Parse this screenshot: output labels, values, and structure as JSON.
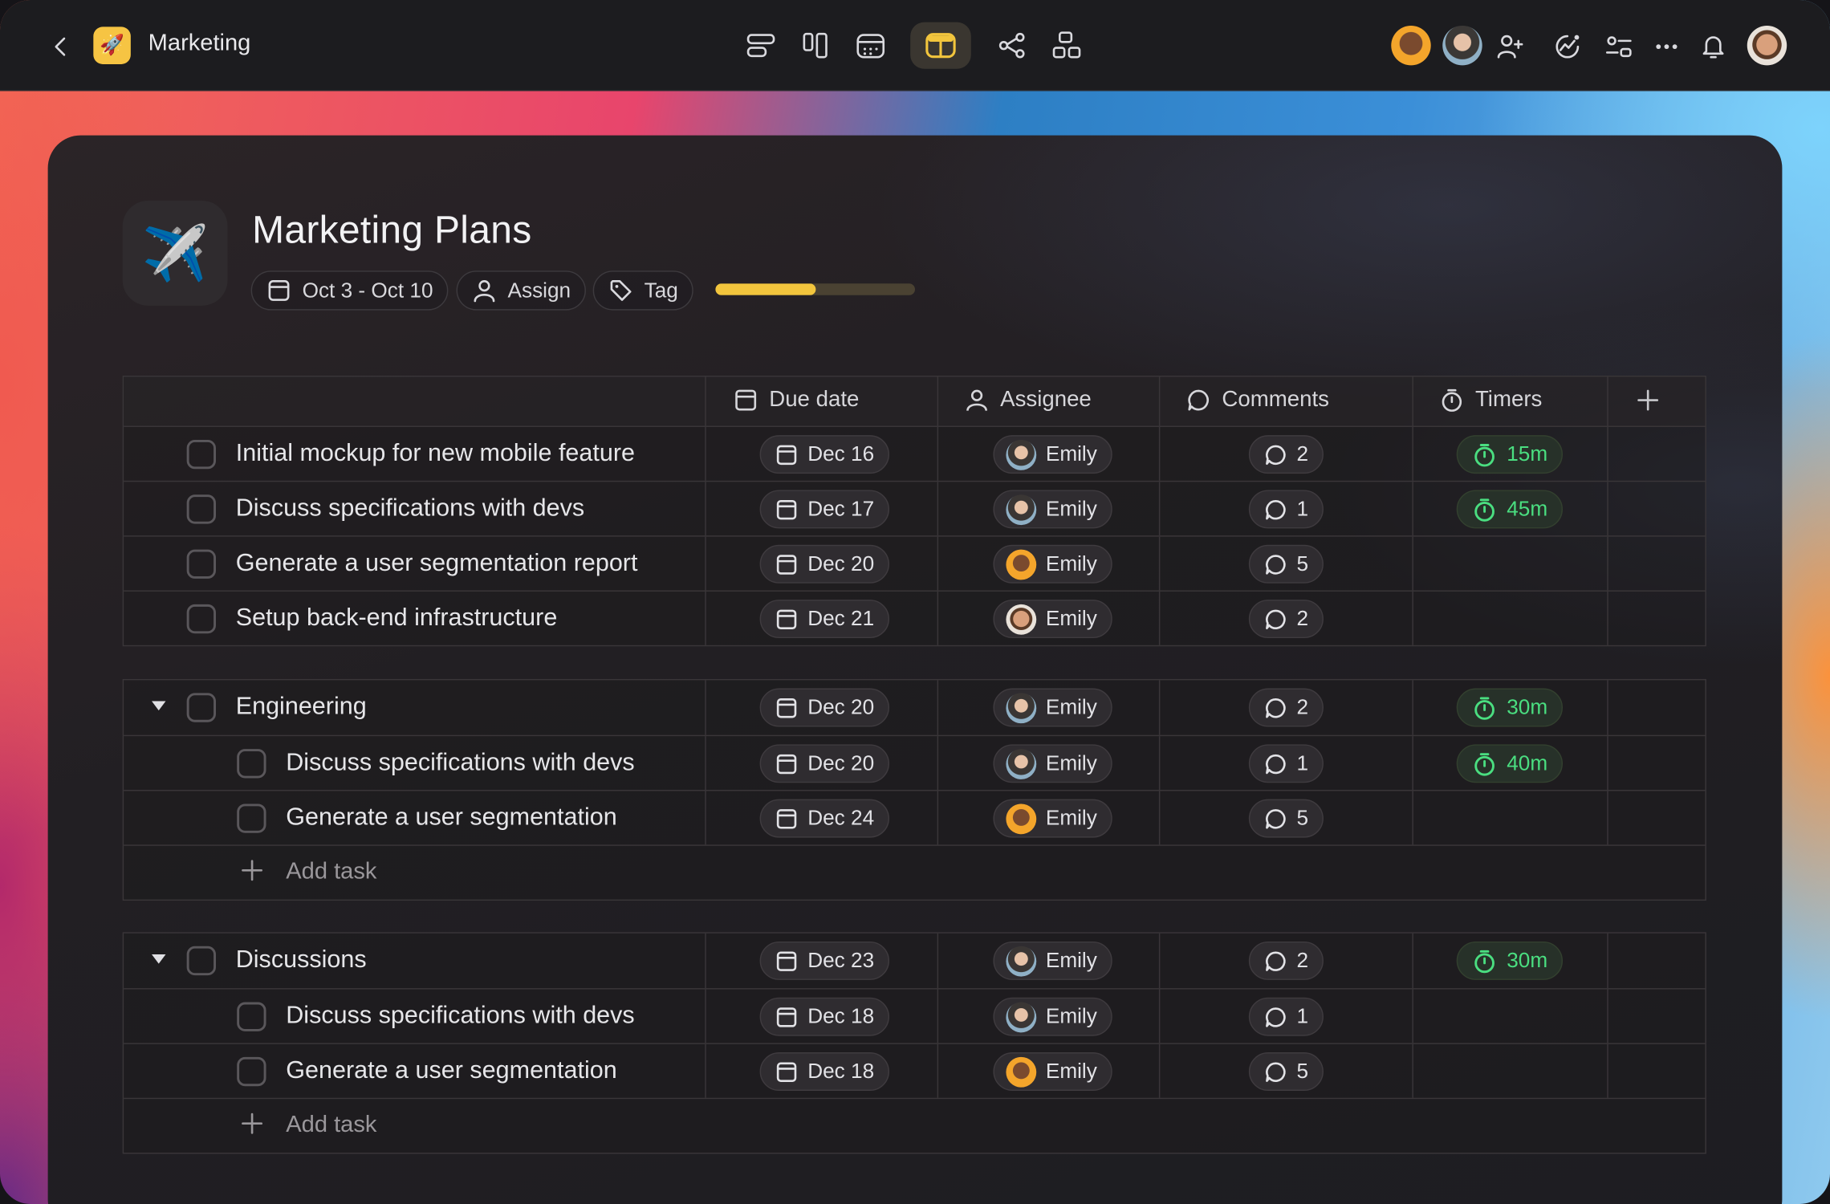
{
  "app": {
    "title": "Marketing",
    "logo_emoji": "🚀"
  },
  "toolbar": {
    "views": [
      "list-view-icon",
      "board-view-icon",
      "calendar-view-icon",
      "table-view-icon",
      "mindmap-view-icon",
      "gantt-view-icon"
    ],
    "active_view": "table-view-icon"
  },
  "project": {
    "icon_emoji": "✈️",
    "title": "Marketing Plans",
    "date_range": "Oct 3 - Oct 10",
    "assign_label": "Assign",
    "tag_label": "Tag",
    "progress_fraction": 0.5
  },
  "columns": {
    "due": "Due date",
    "assignee": "Assignee",
    "comments": "Comments",
    "timers": "Timers"
  },
  "colors": {
    "accent": "#f2c53d",
    "timer": "#4ade80",
    "panel": "#221f23",
    "topbar": "#1c1c1f"
  },
  "groups": [
    {
      "name": null,
      "rows": [
        {
          "title": "Initial mockup for new mobile feature",
          "due": "Dec 16",
          "assignee": "Emily",
          "comments": "2",
          "timer": "15m",
          "avatar": "a"
        },
        {
          "title": "Discuss specifications with devs",
          "due": "Dec 17",
          "assignee": "Emily",
          "comments": "1",
          "timer": "45m",
          "avatar": "a"
        },
        {
          "title": "Generate a user segmentation report",
          "due": "Dec 20",
          "assignee": "Emily",
          "comments": "5",
          "timer": null,
          "avatar": "b"
        },
        {
          "title": "Setup back-end infrastructure",
          "due": "Dec 21",
          "assignee": "Emily",
          "comments": "2",
          "timer": null,
          "avatar": "c"
        }
      ]
    },
    {
      "name": "Engineering",
      "header": {
        "due": "Dec 20",
        "assignee": "Emily",
        "comments": "2",
        "timer": "30m",
        "avatar": "a"
      },
      "rows": [
        {
          "title": "Discuss specifications with devs",
          "due": "Dec 20",
          "assignee": "Emily",
          "comments": "1",
          "timer": "40m",
          "avatar": "a"
        },
        {
          "title": "Generate a user segmentation",
          "due": "Dec 24",
          "assignee": "Emily",
          "comments": "5",
          "timer": null,
          "avatar": "b"
        }
      ],
      "add_task": "Add task"
    },
    {
      "name": "Discussions",
      "header": {
        "due": "Dec 23",
        "assignee": "Emily",
        "comments": "2",
        "timer": "30m",
        "avatar": "a"
      },
      "rows": [
        {
          "title": "Discuss specifications with devs",
          "due": "Dec 18",
          "assignee": "Emily",
          "comments": "1",
          "timer": null,
          "avatar": "a"
        },
        {
          "title": "Generate a user segmentation",
          "due": "Dec 18",
          "assignee": "Emily",
          "comments": "5",
          "timer": null,
          "avatar": "b"
        }
      ],
      "add_task": "Add task"
    }
  ]
}
